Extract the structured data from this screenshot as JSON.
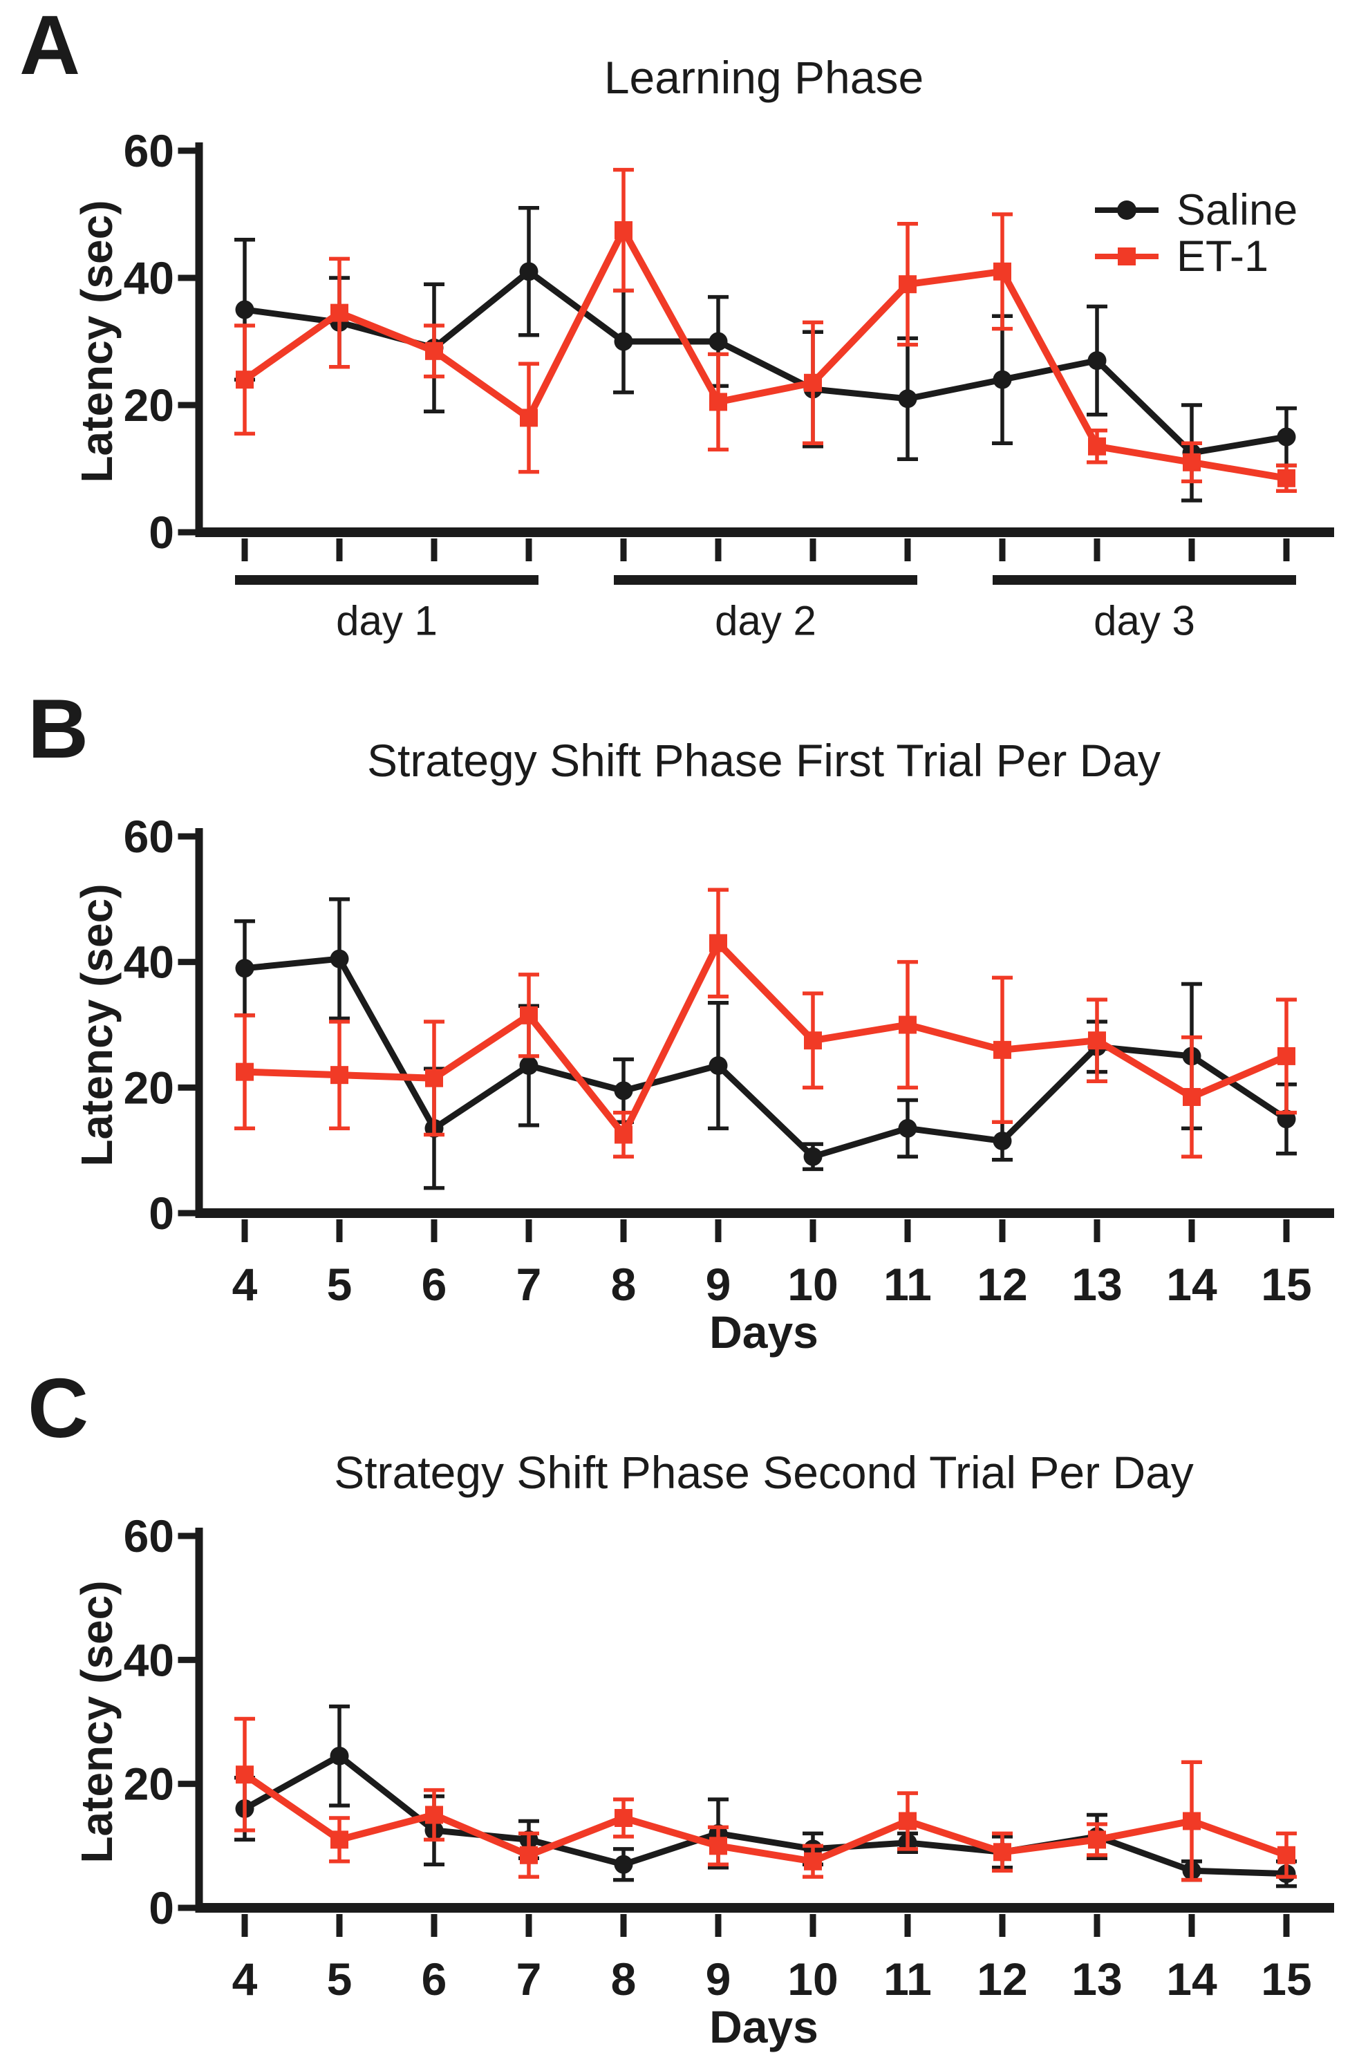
{
  "figure": {
    "background": "#ffffff",
    "text_color": "#1b1b1b",
    "colors": {
      "saline": "#1b1b1b",
      "et1": "#F13A26",
      "axis": "#1b1b1b"
    }
  },
  "chart_data": [
    {
      "panel_label": "A",
      "type": "line",
      "title": "Learning Phase",
      "ylabel": "Latency (sec)",
      "xlabel": "",
      "ylim": [
        0,
        60
      ],
      "yticks": [
        0,
        20,
        40,
        60
      ],
      "x": [
        1,
        2,
        3,
        4,
        5,
        6,
        7,
        8,
        9,
        10,
        11,
        12
      ],
      "x_tick_labels": [],
      "x_group_bars": [
        {
          "label": "day 1",
          "from": 0,
          "to": 3
        },
        {
          "label": "day 2",
          "from": 4,
          "to": 7
        },
        {
          "label": "day 3",
          "from": 8,
          "to": 11
        }
      ],
      "legend": [
        "Saline",
        "ET-1"
      ],
      "legend_position": "top-right",
      "grid": false,
      "series": [
        {
          "name": "Saline",
          "color": "#1b1b1b",
          "marker": "circle",
          "values": [
            35,
            33,
            29,
            41,
            30,
            30,
            22.5,
            21,
            24,
            27,
            12.5,
            15
          ],
          "errors": [
            11,
            7,
            10,
            10,
            8,
            7,
            9,
            9.5,
            10,
            8.5,
            7.5,
            4.5
          ]
        },
        {
          "name": "ET-1",
          "color": "#F13A26",
          "marker": "square",
          "values": [
            24,
            34.5,
            28.5,
            18,
            47.5,
            20.5,
            23.5,
            39,
            41,
            13.5,
            11,
            8.5
          ],
          "errors": [
            8.5,
            8.5,
            4,
            8.5,
            9.5,
            7.5,
            9.5,
            9.5,
            9,
            2.5,
            3,
            2
          ]
        }
      ]
    },
    {
      "panel_label": "B",
      "type": "line",
      "title": "Strategy Shift Phase First Trial Per Day",
      "ylabel": "Latency (sec)",
      "xlabel": "Days",
      "ylim": [
        0,
        60
      ],
      "yticks": [
        0,
        20,
        40,
        60
      ],
      "x": [
        4,
        5,
        6,
        7,
        8,
        9,
        10,
        11,
        12,
        13,
        14,
        15
      ],
      "x_tick_labels": [
        "4",
        "5",
        "6",
        "7",
        "8",
        "9",
        "10",
        "11",
        "12",
        "13",
        "14",
        "15"
      ],
      "x_group_bars": [],
      "legend": [],
      "grid": false,
      "series": [
        {
          "name": "Saline",
          "color": "#1b1b1b",
          "marker": "circle",
          "values": [
            39,
            40.5,
            13.5,
            23.5,
            19.5,
            23.5,
            9,
            13.5,
            11.5,
            26.5,
            25,
            15
          ],
          "errors": [
            7.5,
            9.5,
            9.5,
            9.5,
            5,
            10,
            2,
            4.5,
            3,
            4,
            11.5,
            5.5
          ]
        },
        {
          "name": "ET-1",
          "color": "#F13A26",
          "marker": "square",
          "values": [
            22.5,
            22,
            21.5,
            31.5,
            12.5,
            43,
            27.5,
            30,
            26,
            27.5,
            18.5,
            25
          ],
          "errors": [
            9,
            8.5,
            9,
            6.5,
            3.5,
            8.5,
            7.5,
            10,
            11.5,
            6.5,
            9.5,
            9
          ]
        }
      ]
    },
    {
      "panel_label": "C",
      "type": "line",
      "title": "Strategy Shift Phase Second Trial Per Day",
      "ylabel": "Latency (sec)",
      "xlabel": "Days",
      "ylim": [
        0,
        60
      ],
      "yticks": [
        0,
        20,
        40,
        60
      ],
      "x": [
        4,
        5,
        6,
        7,
        8,
        9,
        10,
        11,
        12,
        13,
        14,
        15
      ],
      "x_tick_labels": [
        "4",
        "5",
        "6",
        "7",
        "8",
        "9",
        "10",
        "11",
        "12",
        "13",
        "14",
        "15"
      ],
      "x_group_bars": [],
      "legend": [],
      "grid": false,
      "series": [
        {
          "name": "Saline",
          "color": "#1b1b1b",
          "marker": "circle",
          "values": [
            16,
            24.5,
            12.5,
            11,
            7,
            12,
            9.5,
            10.5,
            9,
            11.5,
            6,
            5.5
          ],
          "errors": [
            5,
            8,
            5.5,
            3,
            2.5,
            5.5,
            2.5,
            1.5,
            2.5,
            3.5,
            1.5,
            2
          ]
        },
        {
          "name": "ET-1",
          "color": "#F13A26",
          "marker": "square",
          "values": [
            21.5,
            11,
            15,
            8.5,
            14.5,
            10,
            7.5,
            14,
            9,
            11,
            14,
            8.5
          ],
          "errors": [
            9,
            3.5,
            4,
            3.5,
            3,
            3,
            2.5,
            4.5,
            3,
            2.5,
            9.5,
            3.5
          ]
        }
      ]
    }
  ]
}
